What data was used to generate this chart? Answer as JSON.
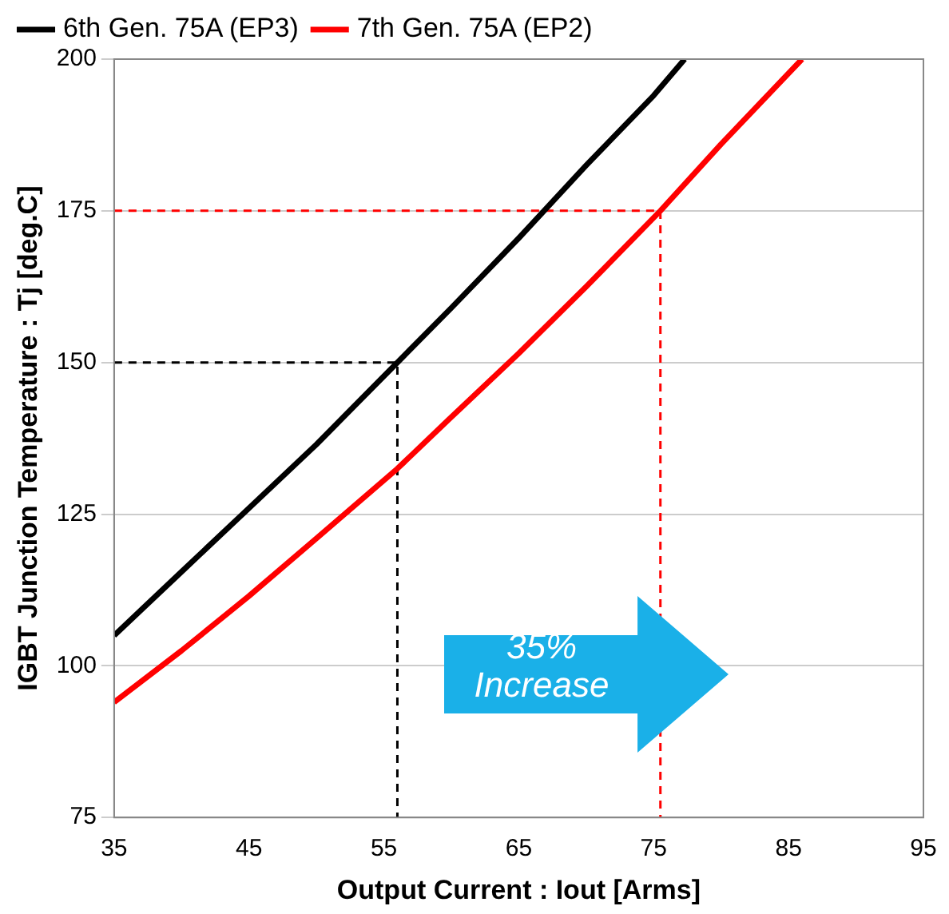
{
  "chart_data": {
    "type": "line",
    "xlabel": "Output Current : Iout [Arms]",
    "ylabel": "IGBT Junction Temperature : Tj [deg.C]",
    "xlim": [
      35,
      95
    ],
    "xticks": [
      35,
      45,
      55,
      65,
      75,
      85,
      95
    ],
    "ylim": [
      75,
      200
    ],
    "yticks": [
      75,
      100,
      125,
      150,
      175,
      200
    ],
    "grid": "y",
    "legend": "top",
    "marker": "none",
    "series": [
      {
        "name": "6th Gen. 75A (EP3)",
        "color": "#000000",
        "x": [
          35,
          40,
          45,
          50,
          56,
          60,
          65,
          70,
          75,
          77.3
        ],
        "values": [
          105,
          115.5,
          126,
          136.5,
          150,
          159,
          170.5,
          182.5,
          194,
          200
        ]
      },
      {
        "name": "7th Gen. 75A (EP2)",
        "color": "#ff0000",
        "x": [
          35,
          40,
          45,
          50,
          56,
          60,
          65,
          70,
          75.5,
          80,
          86
        ],
        "values": [
          94,
          102.5,
          111.5,
          121,
          132.5,
          141,
          151.5,
          162.5,
          175,
          186,
          200
        ]
      },
      {
        "color": "#000000",
        "line_style": "dashed",
        "x": [
          35,
          56,
          56
        ],
        "values": [
          150,
          150,
          75
        ]
      },
      {
        "color": "#ff0000",
        "line_style": "dashed",
        "x": [
          35,
          75.5,
          75.5
        ],
        "values": [
          175,
          175,
          75
        ]
      }
    ],
    "annotations": [
      "35%\nIncrease"
    ]
  }
}
